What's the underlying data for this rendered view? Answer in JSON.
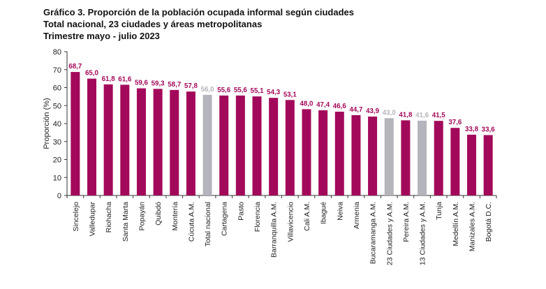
{
  "chart_data": {
    "type": "bar",
    "title": "Gráfico 3. Proporción de la población ocupada informal según ciudades",
    "subtitle": "Total nacional, 23 ciudades y áreas metropolitanas",
    "period": "Trimestre mayo - julio 2023",
    "xlabel": "",
    "ylabel": "Proporción (%)",
    "ylim": [
      0,
      80
    ],
    "yticks": [
      0,
      10,
      20,
      30,
      40,
      50,
      60,
      70,
      80
    ],
    "grid": false,
    "categories": [
      "Sincelejo",
      "Valledupar",
      "Riohacha",
      "Santa Marta",
      "Popayán",
      "Quibdó",
      "Montería",
      "Cúcuta A.M.",
      "Total nacional",
      "Cartagena",
      "Pasto",
      "Florencia",
      "Barranquilla A.M.",
      "Villavicencio",
      "Cali A.M.",
      "Ibagué",
      "Neiva",
      "Armenia",
      "Bucaramanga A.M.",
      "23 Ciudades y A.M.",
      "Pereira A.M.",
      "13 Ciudades y A.M.",
      "Tunja",
      "Medellín A.M.",
      "Manizales A.M.",
      "Bogotá D.C."
    ],
    "values": [
      68.7,
      65.0,
      61.8,
      61.6,
      59.6,
      59.3,
      58.7,
      57.8,
      56.0,
      55.6,
      55.6,
      55.1,
      54.3,
      53.1,
      48.0,
      47.4,
      46.6,
      44.7,
      43.9,
      43.0,
      41.8,
      41.6,
      41.5,
      37.6,
      33.8,
      33.6
    ],
    "value_labels": [
      "68,7",
      "65,0",
      "61,8",
      "61,6",
      "59,6",
      "59,3",
      "58,7",
      "57,8",
      "56,0",
      "55,6",
      "55,6",
      "55,1",
      "54,3",
      "53,1",
      "48,0",
      "47,4",
      "46,6",
      "44,7",
      "43,9",
      "43,0",
      "41,8",
      "41,6",
      "41,5",
      "37,6",
      "33,8",
      "33,6"
    ],
    "highlighted_aggregates": [
      "Total nacional",
      "23 Ciudades y A.M.",
      "13 Ciudades y A.M."
    ],
    "colors": {
      "city": "#a3095a",
      "aggregate": "#b4b4bc",
      "axis": "#333333"
    }
  }
}
